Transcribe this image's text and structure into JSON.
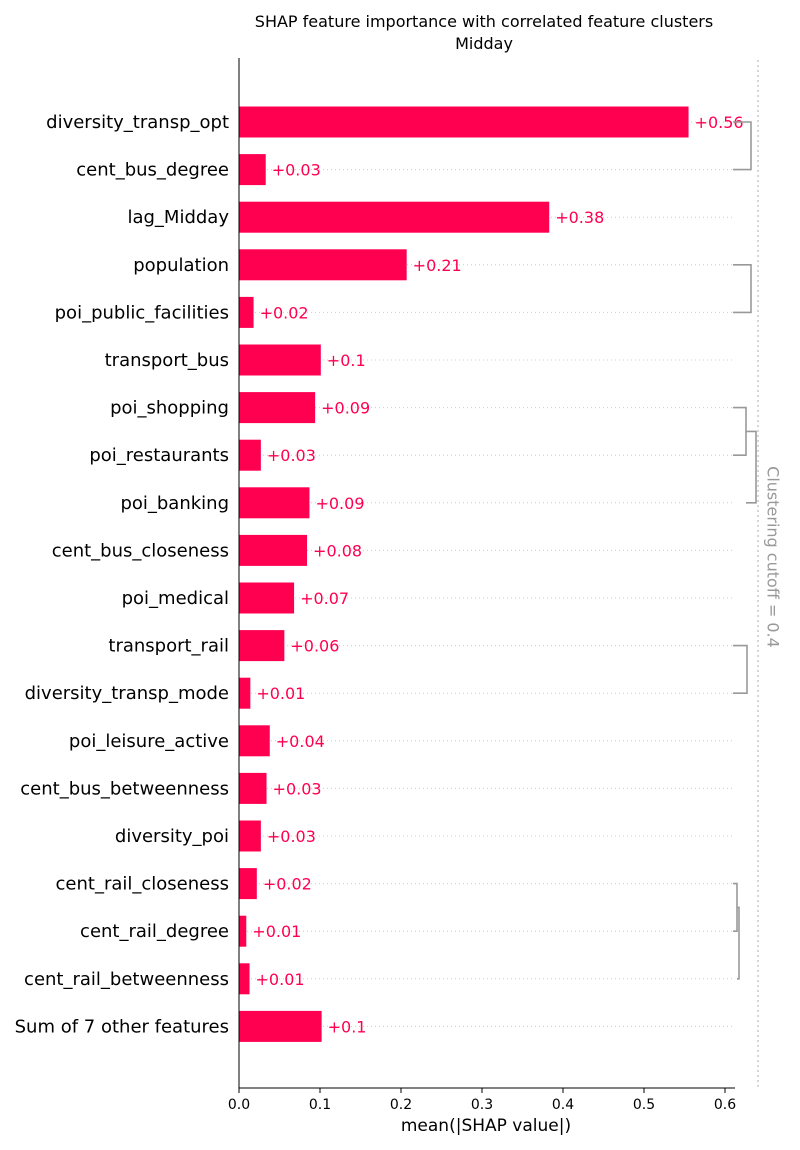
{
  "chart_data": {
    "type": "bar",
    "title": "SHAP feature importance with correlated feature clusters",
    "subtitle": "Midday",
    "xlabel": "mean(|SHAP value|)",
    "ylabel": "",
    "xlim": [
      0.0,
      0.615
    ],
    "xticks": [
      0.0,
      0.1,
      0.2,
      0.3,
      0.4,
      0.5,
      0.6
    ],
    "xtick_labels": [
      "0.0",
      "0.1",
      "0.2",
      "0.3",
      "0.4",
      "0.5",
      "0.6"
    ],
    "categories": [
      "diversity_transp_opt",
      "cent_bus_degree",
      "lag_Midday",
      "population",
      "poi_public_facilities",
      "transport_bus",
      "poi_shopping",
      "poi_restaurants",
      "poi_banking",
      "cent_bus_closeness",
      "poi_medical",
      "transport_rail",
      "diversity_transp_mode",
      "poi_leisure_active",
      "cent_bus_betweenness",
      "diversity_poi",
      "cent_rail_closeness",
      "cent_rail_degree",
      "cent_rail_betweenness",
      "Sum of 7 other features"
    ],
    "values": [
      0.555,
      0.033,
      0.383,
      0.207,
      0.018,
      0.101,
      0.094,
      0.027,
      0.087,
      0.084,
      0.068,
      0.056,
      0.014,
      0.038,
      0.034,
      0.027,
      0.022,
      0.009,
      0.013,
      0.102
    ],
    "value_labels": [
      "+0.56",
      "+0.03",
      "+0.38",
      "+0.21",
      "+0.02",
      "+0.1",
      "+0.09",
      "+0.03",
      "+0.09",
      "+0.08",
      "+0.07",
      "+0.06",
      "+0.01",
      "+0.04",
      "+0.03",
      "+0.03",
      "+0.02",
      "+0.01",
      "+0.01",
      "+0.1"
    ],
    "clustering_label": "Clustering cutoff = 0.4",
    "grid": false,
    "colors": {
      "bar": "#ff0051",
      "value_label": "#ff0051",
      "cluster_bracket": "#999999",
      "cutoff_line": "#bbbbbb",
      "row_guide": "#cccccc"
    }
  }
}
